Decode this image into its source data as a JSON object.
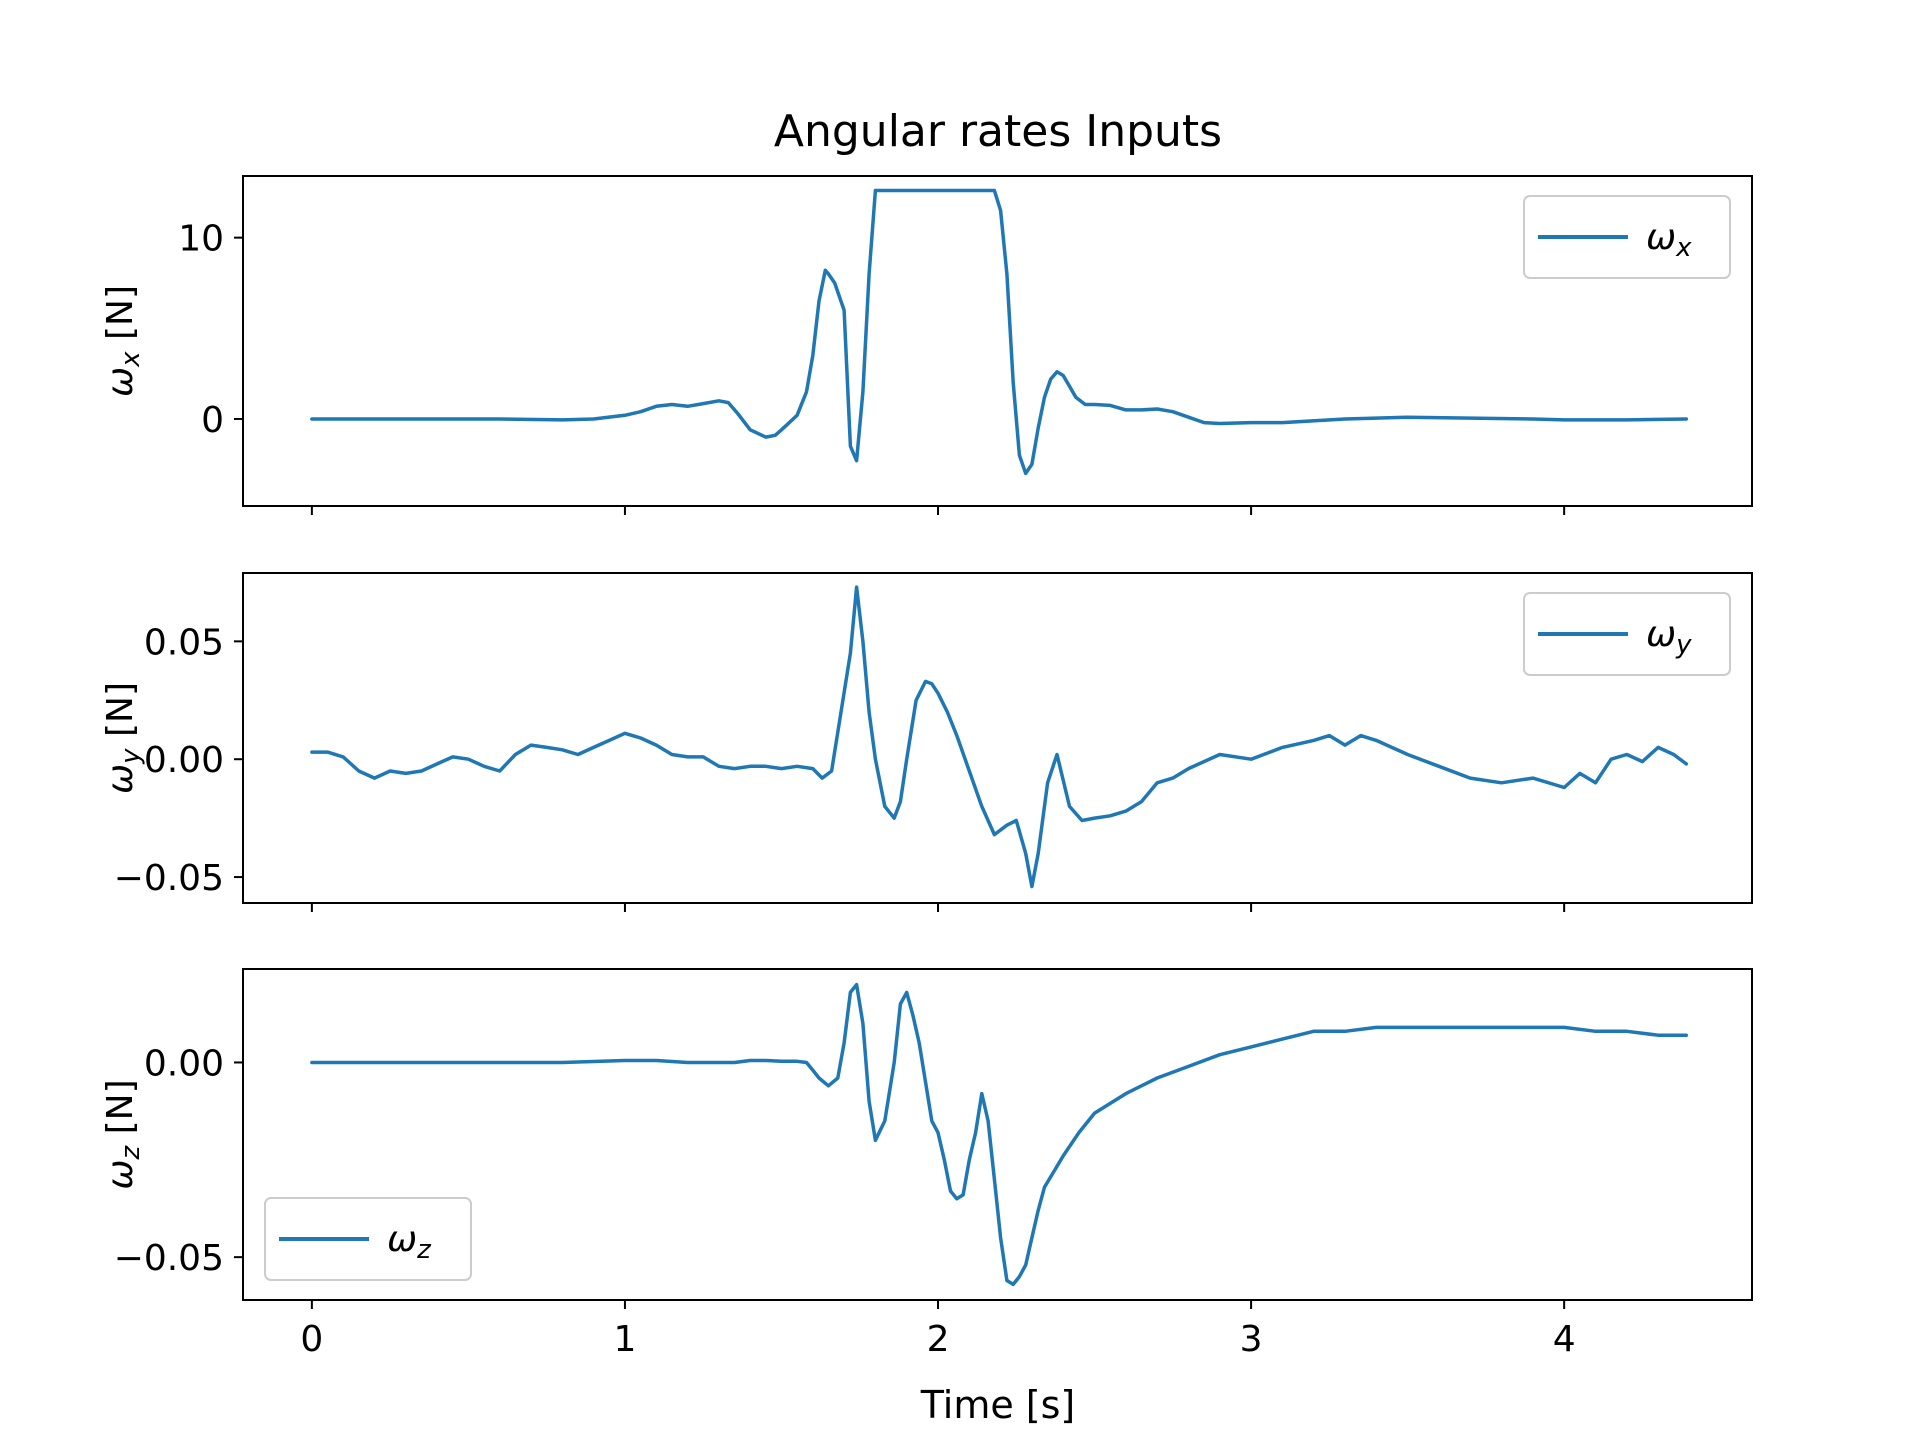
{
  "chart_data": {
    "type": "line",
    "title": "Angular rates Inputs",
    "xlabel": "Time [s]",
    "xlim": [
      -0.22,
      4.6
    ],
    "xticks": [
      0,
      1,
      2,
      3,
      4
    ],
    "xtick_labels": [
      "0",
      "1",
      "2",
      "3",
      "4"
    ],
    "color": "#1f77b4",
    "panels": [
      {
        "ylabel_symbol": "ω",
        "ylabel_sub": "x",
        "ylabel_unit": " [N]",
        "ylim": [
          -4.8,
          13.4
        ],
        "yticks": [
          0,
          10
        ],
        "ytick_labels": [
          "0",
          "10"
        ],
        "legend": {
          "symbol": "ω",
          "sub": "x",
          "position": "upper right"
        },
        "series": {
          "x": [
            0.0,
            0.2,
            0.4,
            0.6,
            0.8,
            0.9,
            1.0,
            1.05,
            1.1,
            1.15,
            1.2,
            1.25,
            1.3,
            1.33,
            1.36,
            1.4,
            1.45,
            1.48,
            1.5,
            1.55,
            1.58,
            1.6,
            1.62,
            1.64,
            1.65,
            1.67,
            1.7,
            1.72,
            1.74,
            1.76,
            1.78,
            1.8,
            1.82,
            2.18,
            2.2,
            2.22,
            2.24,
            2.26,
            2.28,
            2.3,
            2.32,
            2.34,
            2.36,
            2.38,
            2.4,
            2.42,
            2.44,
            2.47,
            2.5,
            2.55,
            2.6,
            2.65,
            2.7,
            2.75,
            2.8,
            2.85,
            2.9,
            3.0,
            3.1,
            3.3,
            3.5,
            3.7,
            3.9,
            4.0,
            4.2,
            4.39
          ],
          "y": [
            0.0,
            0.0,
            0.0,
            0.0,
            -0.05,
            0.0,
            0.2,
            0.4,
            0.7,
            0.8,
            0.7,
            0.85,
            1.0,
            0.9,
            0.3,
            -0.6,
            -1.0,
            -0.9,
            -0.6,
            0.2,
            1.5,
            3.5,
            6.5,
            8.2,
            8.0,
            7.5,
            6.0,
            -1.5,
            -2.3,
            1.5,
            8.0,
            12.6,
            12.6,
            12.6,
            11.5,
            8.0,
            2.0,
            -2.0,
            -3.0,
            -2.5,
            -0.5,
            1.2,
            2.2,
            2.6,
            2.4,
            1.8,
            1.2,
            0.8,
            0.8,
            0.75,
            0.5,
            0.5,
            0.55,
            0.4,
            0.1,
            -0.2,
            -0.25,
            -0.2,
            -0.2,
            0.0,
            0.1,
            0.05,
            0.0,
            -0.05,
            -0.05,
            0.0
          ]
        }
      },
      {
        "ylabel_symbol": "ω",
        "ylabel_sub": "y",
        "ylabel_unit": " [N]",
        "ylim": [
          -0.061,
          0.079
        ],
        "yticks": [
          -0.05,
          0.0,
          0.05
        ],
        "ytick_labels": [
          "−0.05",
          "0.00",
          "0.05"
        ],
        "legend": {
          "symbol": "ω",
          "sub": "y",
          "position": "upper right"
        },
        "series": {
          "x": [
            0.0,
            0.05,
            0.1,
            0.15,
            0.2,
            0.25,
            0.3,
            0.35,
            0.4,
            0.45,
            0.5,
            0.55,
            0.6,
            0.65,
            0.7,
            0.75,
            0.8,
            0.85,
            0.9,
            0.95,
            1.0,
            1.05,
            1.1,
            1.15,
            1.2,
            1.25,
            1.3,
            1.35,
            1.4,
            1.45,
            1.5,
            1.55,
            1.6,
            1.63,
            1.66,
            1.69,
            1.72,
            1.74,
            1.76,
            1.78,
            1.8,
            1.83,
            1.86,
            1.88,
            1.9,
            1.93,
            1.96,
            1.98,
            2.0,
            2.03,
            2.06,
            2.1,
            2.14,
            2.18,
            2.22,
            2.25,
            2.28,
            2.3,
            2.32,
            2.35,
            2.38,
            2.42,
            2.46,
            2.5,
            2.55,
            2.6,
            2.65,
            2.7,
            2.75,
            2.8,
            2.9,
            3.0,
            3.1,
            3.2,
            3.25,
            3.3,
            3.35,
            3.4,
            3.5,
            3.6,
            3.7,
            3.8,
            3.9,
            4.0,
            4.05,
            4.1,
            4.15,
            4.2,
            4.25,
            4.3,
            4.35,
            4.39
          ],
          "y": [
            0.003,
            0.003,
            0.001,
            -0.005,
            -0.008,
            -0.005,
            -0.006,
            -0.005,
            -0.002,
            0.001,
            0.0,
            -0.003,
            -0.005,
            0.002,
            0.006,
            0.005,
            0.004,
            0.002,
            0.005,
            0.008,
            0.011,
            0.009,
            0.006,
            0.002,
            0.001,
            0.001,
            -0.003,
            -0.004,
            -0.003,
            -0.003,
            -0.004,
            -0.003,
            -0.004,
            -0.008,
            -0.005,
            0.02,
            0.045,
            0.073,
            0.05,
            0.02,
            0.0,
            -0.02,
            -0.025,
            -0.018,
            0.0,
            0.025,
            0.033,
            0.032,
            0.028,
            0.02,
            0.01,
            -0.005,
            -0.02,
            -0.032,
            -0.028,
            -0.026,
            -0.04,
            -0.054,
            -0.04,
            -0.01,
            0.002,
            -0.02,
            -0.026,
            -0.025,
            -0.024,
            -0.022,
            -0.018,
            -0.01,
            -0.008,
            -0.004,
            0.002,
            0.0,
            0.005,
            0.008,
            0.01,
            0.006,
            0.01,
            0.008,
            0.002,
            -0.003,
            -0.008,
            -0.01,
            -0.008,
            -0.012,
            -0.006,
            -0.01,
            0.0,
            0.002,
            -0.001,
            0.005,
            0.002,
            -0.002
          ]
        }
      },
      {
        "ylabel_symbol": "ω",
        "ylabel_sub": "z",
        "ylabel_unit": " [N]",
        "ylim": [
          -0.061,
          0.024
        ],
        "yticks": [
          -0.05,
          0.0
        ],
        "ytick_labels": [
          "−0.05",
          "0.00"
        ],
        "legend": {
          "symbol": "ω",
          "sub": "z",
          "position": "lower left"
        },
        "series": {
          "x": [
            0.0,
            0.2,
            0.4,
            0.6,
            0.8,
            1.0,
            1.1,
            1.2,
            1.3,
            1.35,
            1.4,
            1.45,
            1.5,
            1.55,
            1.58,
            1.6,
            1.62,
            1.65,
            1.68,
            1.7,
            1.72,
            1.74,
            1.76,
            1.78,
            1.8,
            1.83,
            1.86,
            1.88,
            1.9,
            1.92,
            1.94,
            1.96,
            1.98,
            2.0,
            2.02,
            2.04,
            2.06,
            2.08,
            2.1,
            2.12,
            2.14,
            2.16,
            2.18,
            2.2,
            2.22,
            2.24,
            2.26,
            2.28,
            2.3,
            2.32,
            2.34,
            2.37,
            2.4,
            2.45,
            2.5,
            2.6,
            2.7,
            2.8,
            2.9,
            3.0,
            3.1,
            3.2,
            3.3,
            3.4,
            3.5,
            3.6,
            3.7,
            3.8,
            3.9,
            4.0,
            4.1,
            4.2,
            4.3,
            4.39
          ],
          "y": [
            0.0,
            0.0,
            0.0,
            0.0,
            0.0,
            0.0005,
            0.0005,
            0.0,
            0.0,
            0.0,
            0.0005,
            0.0005,
            0.0003,
            0.0003,
            0.0,
            -0.002,
            -0.004,
            -0.006,
            -0.004,
            0.005,
            0.018,
            0.02,
            0.01,
            -0.01,
            -0.02,
            -0.015,
            0.0,
            0.015,
            0.018,
            0.012,
            0.005,
            -0.005,
            -0.015,
            -0.018,
            -0.025,
            -0.033,
            -0.035,
            -0.034,
            -0.025,
            -0.018,
            -0.008,
            -0.015,
            -0.03,
            -0.045,
            -0.056,
            -0.057,
            -0.055,
            -0.052,
            -0.045,
            -0.038,
            -0.032,
            -0.028,
            -0.024,
            -0.018,
            -0.013,
            -0.008,
            -0.004,
            -0.001,
            0.002,
            0.004,
            0.006,
            0.008,
            0.008,
            0.009,
            0.009,
            0.009,
            0.009,
            0.009,
            0.009,
            0.009,
            0.008,
            0.008,
            0.007,
            0.007
          ]
        }
      }
    ]
  }
}
